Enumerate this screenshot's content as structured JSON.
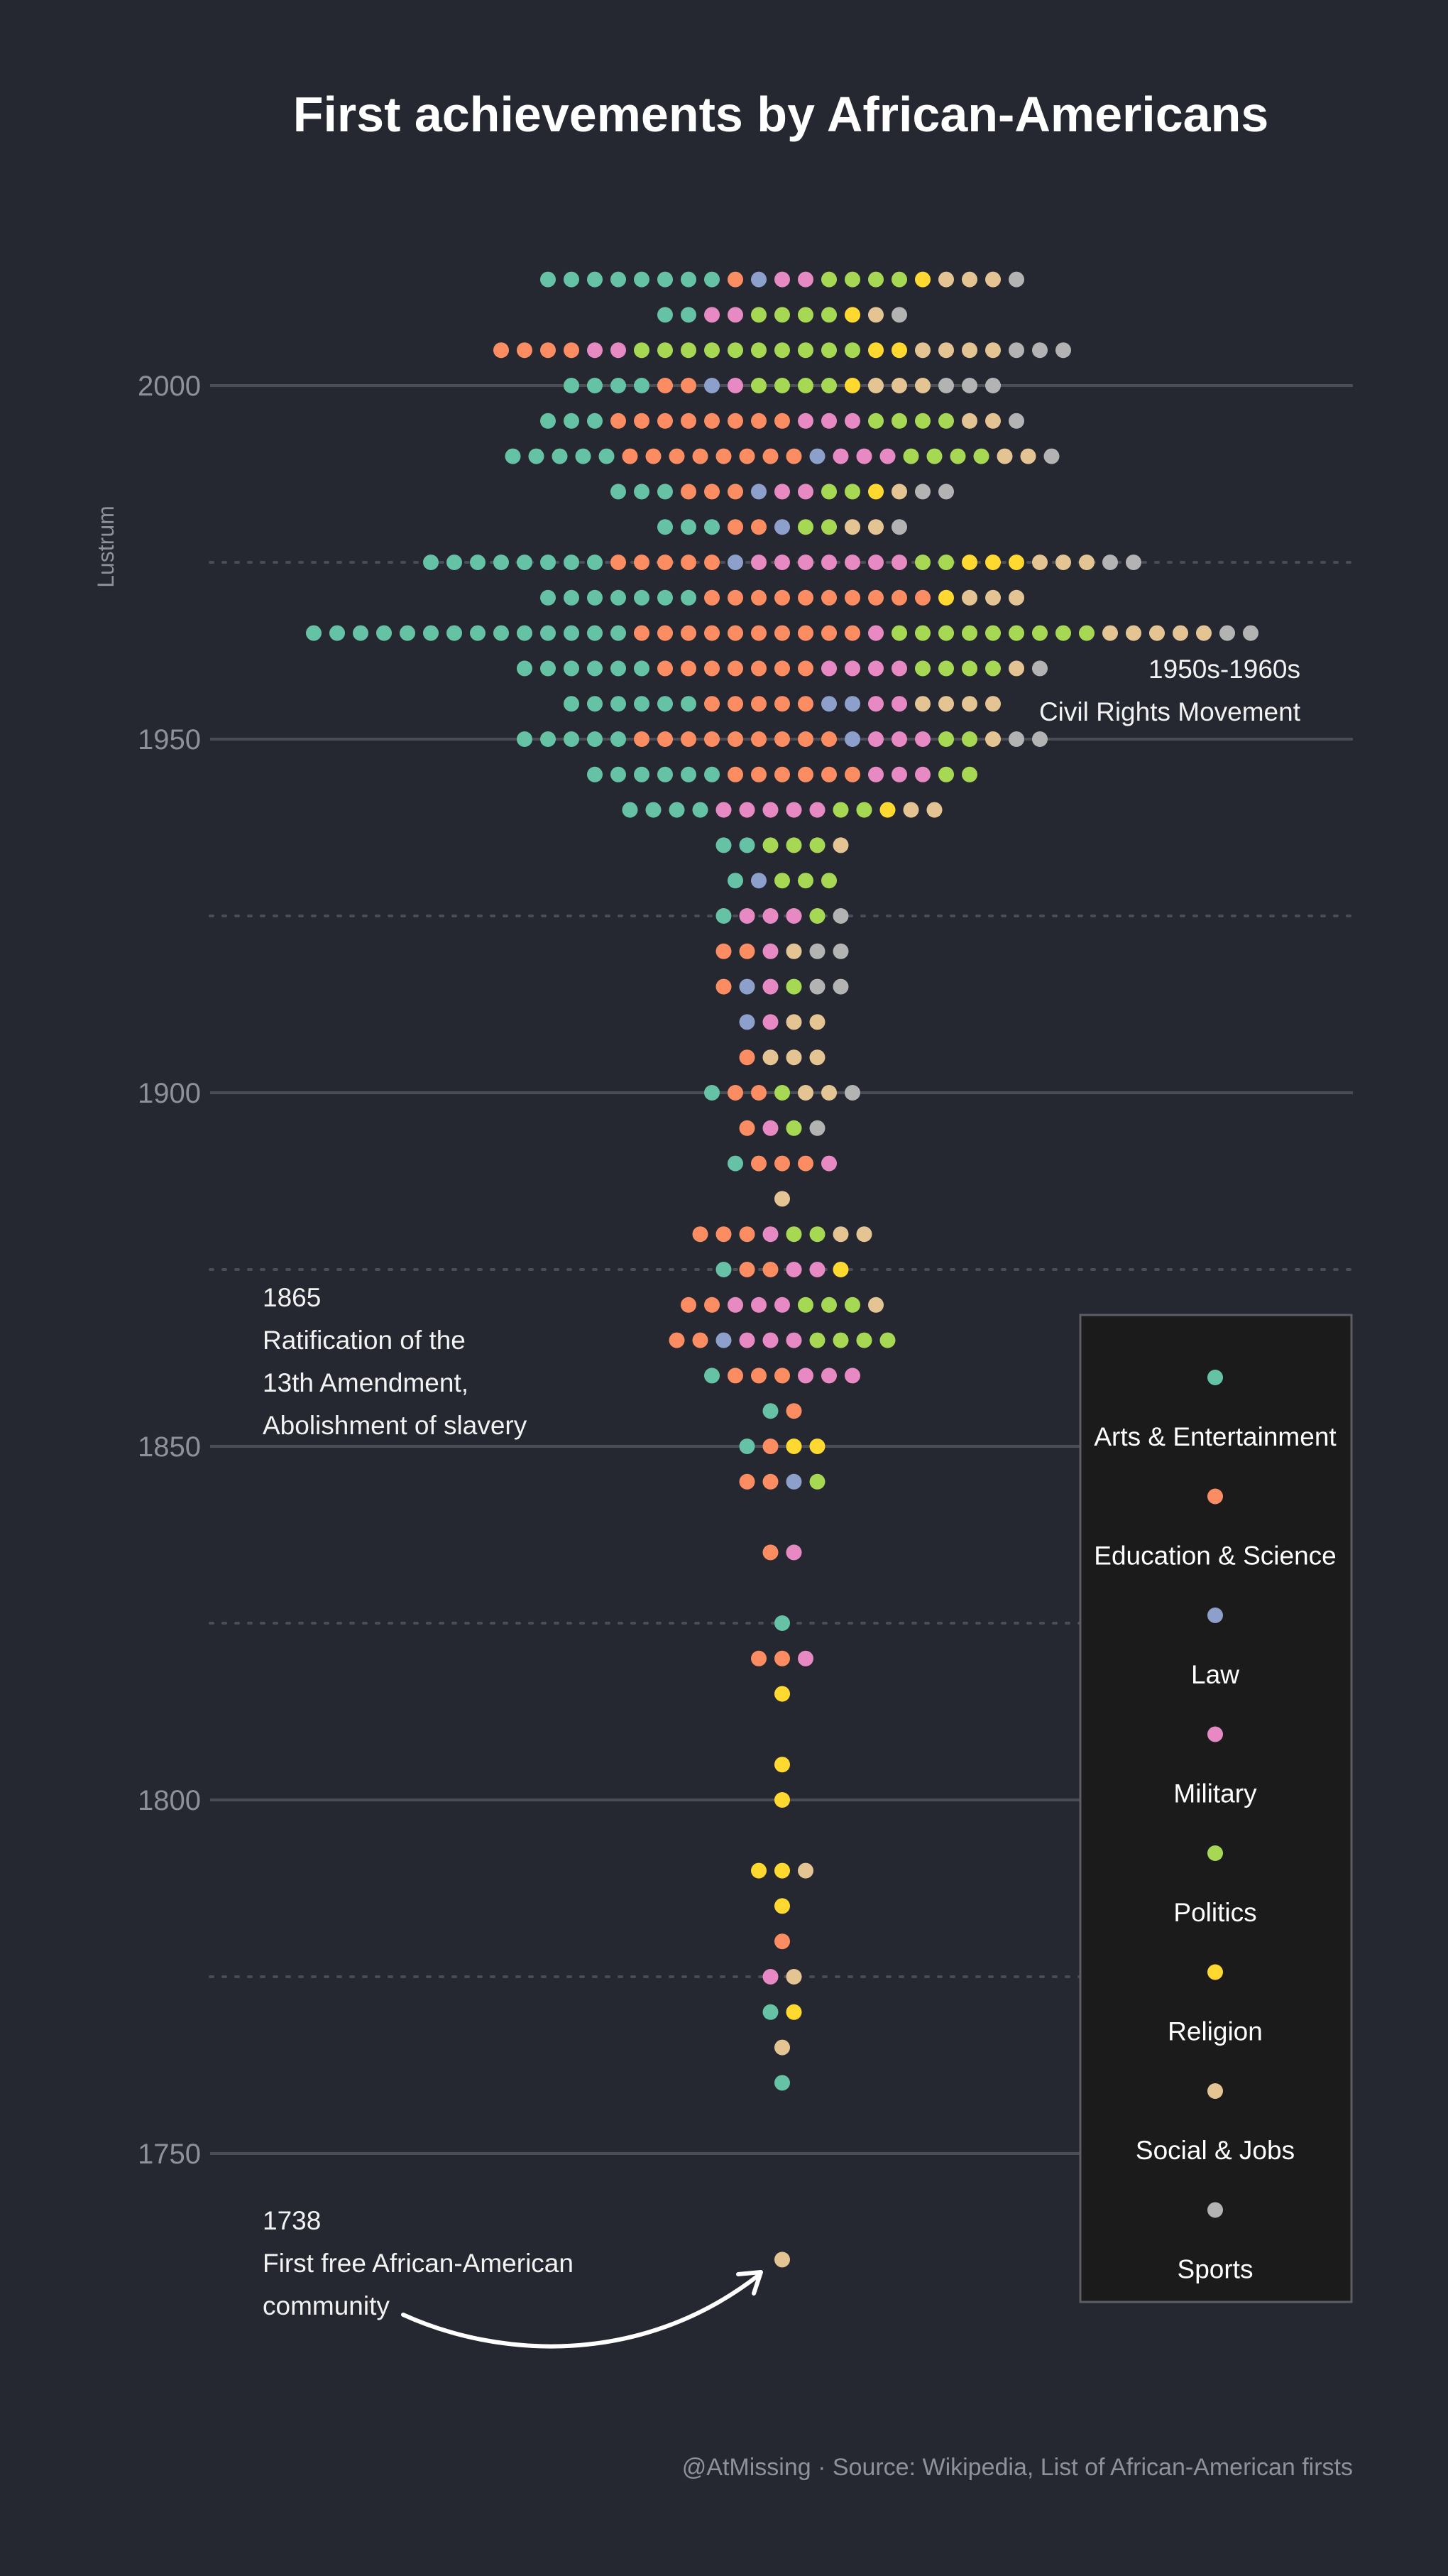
{
  "chart_data": {
    "type": "dot-histogram",
    "title": "First achievements by African-Americans",
    "ylabel": "Lustrum",
    "ylim": [
      1730,
      2020
    ],
    "y_ticks": [
      1750,
      1800,
      1850,
      1900,
      1950,
      2000
    ],
    "y_ticks_label": [
      "1750",
      "1800",
      "1850",
      "1900",
      "1950",
      "2000"
    ],
    "minor_ticks": [
      1775,
      1825,
      1875,
      1925,
      1975
    ],
    "categories": [
      {
        "name": "Arts & Entertainment",
        "color": "#66c2a5"
      },
      {
        "name": "Education & Science",
        "color": "#fc8d62"
      },
      {
        "name": "Law",
        "color": "#8da0cb"
      },
      {
        "name": "Military",
        "color": "#e78ac3"
      },
      {
        "name": "Politics",
        "color": "#a6d854"
      },
      {
        "name": "Religion",
        "color": "#ffd92f"
      },
      {
        "name": "Social & Jobs",
        "color": "#e5c494"
      },
      {
        "name": "Sports",
        "color": "#b3b3b3"
      }
    ],
    "counts_order": [
      "Arts & Entertainment",
      "Education & Science",
      "Law",
      "Military",
      "Politics",
      "Religion",
      "Social & Jobs",
      "Sports"
    ],
    "rows": [
      {
        "year": 1735,
        "counts": [
          0,
          0,
          0,
          0,
          0,
          0,
          1,
          0
        ]
      },
      {
        "year": 1760,
        "counts": [
          1,
          0,
          0,
          0,
          0,
          0,
          0,
          0
        ]
      },
      {
        "year": 1765,
        "counts": [
          0,
          0,
          0,
          0,
          0,
          0,
          1,
          0
        ]
      },
      {
        "year": 1770,
        "counts": [
          1,
          0,
          0,
          0,
          0,
          1,
          0,
          0
        ]
      },
      {
        "year": 1775,
        "counts": [
          0,
          0,
          0,
          1,
          0,
          0,
          1,
          0
        ]
      },
      {
        "year": 1780,
        "counts": [
          0,
          1,
          0,
          0,
          0,
          0,
          0,
          0
        ]
      },
      {
        "year": 1785,
        "counts": [
          0,
          0,
          0,
          0,
          0,
          1,
          0,
          0
        ]
      },
      {
        "year": 1790,
        "counts": [
          0,
          0,
          0,
          0,
          0,
          2,
          1,
          0
        ]
      },
      {
        "year": 1800,
        "counts": [
          0,
          0,
          0,
          0,
          0,
          1,
          0,
          0
        ]
      },
      {
        "year": 1805,
        "counts": [
          0,
          0,
          0,
          0,
          0,
          1,
          0,
          0
        ]
      },
      {
        "year": 1815,
        "counts": [
          0,
          0,
          0,
          0,
          0,
          1,
          0,
          0
        ]
      },
      {
        "year": 1820,
        "counts": [
          0,
          2,
          0,
          1,
          0,
          0,
          0,
          0
        ]
      },
      {
        "year": 1825,
        "counts": [
          1,
          0,
          0,
          0,
          0,
          0,
          0,
          0
        ]
      },
      {
        "year": 1835,
        "counts": [
          0,
          1,
          0,
          1,
          0,
          0,
          0,
          0
        ]
      },
      {
        "year": 1845,
        "counts": [
          0,
          2,
          1,
          0,
          1,
          0,
          0,
          0
        ]
      },
      {
        "year": 1850,
        "counts": [
          1,
          1,
          0,
          0,
          0,
          2,
          0,
          0
        ]
      },
      {
        "year": 1855,
        "counts": [
          1,
          1,
          0,
          0,
          0,
          0,
          0,
          0
        ]
      },
      {
        "year": 1860,
        "counts": [
          1,
          3,
          0,
          3,
          0,
          0,
          0,
          0
        ]
      },
      {
        "year": 1865,
        "counts": [
          0,
          2,
          1,
          3,
          4,
          0,
          0,
          0
        ]
      },
      {
        "year": 1870,
        "counts": [
          0,
          2,
          0,
          3,
          3,
          0,
          1,
          0
        ]
      },
      {
        "year": 1875,
        "counts": [
          1,
          2,
          0,
          2,
          0,
          1,
          0,
          0
        ]
      },
      {
        "year": 1880,
        "counts": [
          0,
          3,
          0,
          1,
          2,
          0,
          2,
          0
        ]
      },
      {
        "year": 1885,
        "counts": [
          0,
          0,
          0,
          0,
          0,
          0,
          1,
          0
        ]
      },
      {
        "year": 1890,
        "counts": [
          1,
          3,
          0,
          1,
          0,
          0,
          0,
          0
        ]
      },
      {
        "year": 1895,
        "counts": [
          0,
          1,
          0,
          1,
          1,
          0,
          0,
          1
        ]
      },
      {
        "year": 1900,
        "counts": [
          1,
          2,
          0,
          0,
          1,
          0,
          2,
          1
        ]
      },
      {
        "year": 1905,
        "counts": [
          0,
          1,
          0,
          0,
          0,
          0,
          3,
          0
        ]
      },
      {
        "year": 1910,
        "counts": [
          0,
          0,
          1,
          1,
          0,
          0,
          2,
          0
        ]
      },
      {
        "year": 1915,
        "counts": [
          0,
          1,
          1,
          1,
          1,
          0,
          0,
          2
        ]
      },
      {
        "year": 1920,
        "counts": [
          0,
          2,
          0,
          1,
          0,
          0,
          1,
          2
        ]
      },
      {
        "year": 1925,
        "counts": [
          1,
          0,
          0,
          3,
          1,
          0,
          0,
          1
        ]
      },
      {
        "year": 1930,
        "counts": [
          1,
          0,
          1,
          0,
          3,
          0,
          0,
          0
        ]
      },
      {
        "year": 1935,
        "counts": [
          2,
          0,
          0,
          0,
          3,
          0,
          1,
          0
        ]
      },
      {
        "year": 1940,
        "counts": [
          4,
          0,
          0,
          5,
          2,
          1,
          2,
          0
        ]
      },
      {
        "year": 1945,
        "counts": [
          6,
          6,
          0,
          3,
          2,
          0,
          0,
          0
        ]
      },
      {
        "year": 1950,
        "counts": [
          5,
          9,
          1,
          3,
          2,
          0,
          1,
          2
        ]
      },
      {
        "year": 1955,
        "counts": [
          6,
          5,
          2,
          2,
          0,
          0,
          4,
          0
        ]
      },
      {
        "year": 1960,
        "counts": [
          6,
          7,
          0,
          4,
          4,
          0,
          1,
          1
        ]
      },
      {
        "year": 1965,
        "counts": [
          14,
          10,
          0,
          1,
          9,
          0,
          5,
          2
        ]
      },
      {
        "year": 1970,
        "counts": [
          7,
          10,
          0,
          0,
          0,
          1,
          3,
          0
        ]
      },
      {
        "year": 1975,
        "counts": [
          8,
          5,
          1,
          7,
          2,
          3,
          3,
          2
        ]
      },
      {
        "year": 1980,
        "counts": [
          3,
          2,
          1,
          0,
          2,
          0,
          2,
          1
        ]
      },
      {
        "year": 1985,
        "counts": [
          3,
          3,
          1,
          2,
          2,
          1,
          1,
          2
        ]
      },
      {
        "year": 1990,
        "counts": [
          5,
          8,
          1,
          3,
          4,
          0,
          2,
          1
        ]
      },
      {
        "year": 1995,
        "counts": [
          3,
          8,
          0,
          3,
          4,
          0,
          2,
          1
        ]
      },
      {
        "year": 2000,
        "counts": [
          4,
          2,
          1,
          1,
          4,
          1,
          3,
          3
        ]
      },
      {
        "year": 2005,
        "counts": [
          0,
          4,
          0,
          2,
          10,
          2,
          4,
          3
        ]
      },
      {
        "year": 2010,
        "counts": [
          2,
          0,
          0,
          2,
          4,
          1,
          1,
          1
        ]
      },
      {
        "year": 2015,
        "counts": [
          8,
          1,
          1,
          2,
          4,
          1,
          3,
          1
        ]
      }
    ],
    "annotations": [
      {
        "year": 1960,
        "lines": [
          "1950s-1960s",
          "Civil Rights Movement"
        ]
      },
      {
        "year": 1865,
        "lines": [
          "1865",
          "Ratification of the",
          "13th Amendment,",
          "Abolishment of slavery"
        ]
      },
      {
        "year": 1738,
        "lines": [
          "1738",
          "First free African-American",
          "community"
        ]
      }
    ],
    "caption": "@AtMissing · Source: Wikipedia, List of African-American firsts"
  }
}
